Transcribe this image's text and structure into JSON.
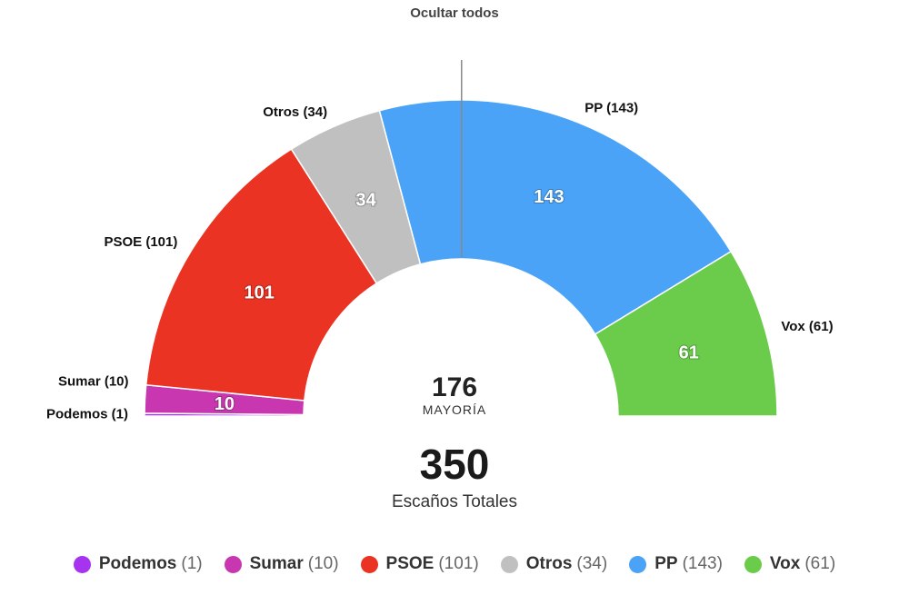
{
  "controls": {
    "hide_all_label": "Ocultar todos"
  },
  "chart_data": {
    "type": "pie",
    "variant": "half-donut",
    "title": "",
    "total_seats": 350,
    "total_label": "Escaños Totales",
    "majority": 176,
    "majority_label": "MAYORÍA",
    "series": [
      {
        "name": "Podemos",
        "value": 1,
        "color": "#a633ee",
        "outer_label": "Podemos (1)",
        "count_label": "(1)",
        "slice_label": ""
      },
      {
        "name": "Sumar",
        "value": 10,
        "color": "#c837b0",
        "outer_label": "Sumar (10)",
        "count_label": "(10)",
        "slice_label": "10"
      },
      {
        "name": "PSOE",
        "value": 101,
        "color": "#ea3323",
        "outer_label": "PSOE (101)",
        "count_label": "(101)",
        "slice_label": "101"
      },
      {
        "name": "Otros",
        "value": 34,
        "color": "#c0c0c0",
        "outer_label": "Otros (34)",
        "count_label": "(34)",
        "slice_label": "34"
      },
      {
        "name": "PP",
        "value": 143,
        "color": "#4aa3f7",
        "outer_label": "PP (143)",
        "count_label": "(143)",
        "slice_label": "143"
      },
      {
        "name": "Vox",
        "value": 61,
        "color": "#6bcb4b",
        "outer_label": "Vox (61)",
        "count_label": "(61)",
        "slice_label": "61"
      }
    ],
    "legend_position": "bottom"
  }
}
